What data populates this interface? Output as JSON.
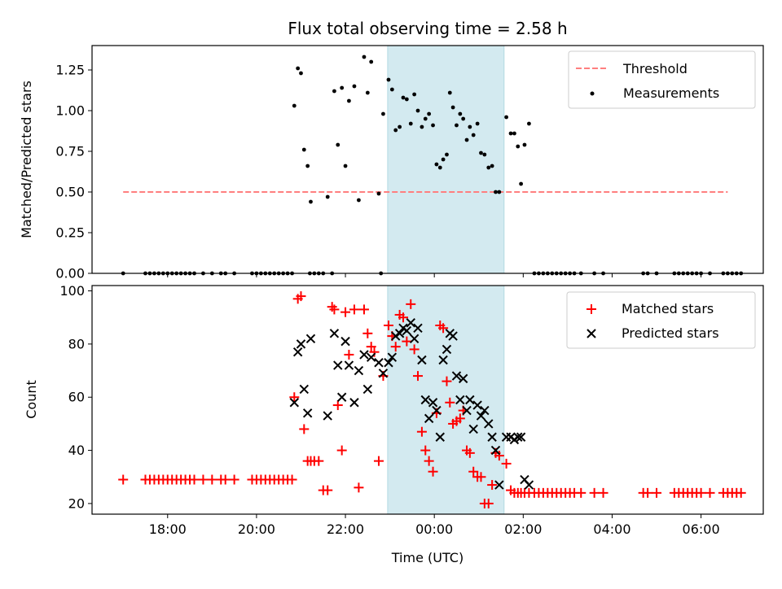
{
  "chart_data": [
    {
      "type": "scatter",
      "title": "Flux total observing time = 2.58 h",
      "xlabel": "",
      "ylabel": "Matched/Predicted stars",
      "xlim": [
        16.3,
        31.4
      ],
      "ylim": [
        0,
        1.4
      ],
      "x_ticks": [
        18,
        20,
        22,
        24,
        26,
        28,
        30
      ],
      "y_ticks": [
        0,
        0.25,
        0.5,
        0.75,
        1.0,
        1.25
      ],
      "y_tick_labels": [
        "0.00",
        "0.25",
        "0.50",
        "0.75",
        "1.00",
        "1.25"
      ],
      "shaded_interval": [
        22.95,
        25.57
      ],
      "shade_color": "#d3eaf0",
      "legend_position": "upper right",
      "legend": [
        "Threshold",
        "Measurements"
      ],
      "threshold": {
        "name": "Threshold",
        "value": 0.5,
        "x_range": [
          17.0,
          30.6
        ],
        "color": "#ff7f7f",
        "style": "dashed"
      },
      "series": [
        {
          "name": "Measurements",
          "color": "#000000",
          "x": [
            20.85,
            20.93,
            21.0,
            21.07,
            21.15,
            21.22,
            21.6,
            21.75,
            21.83,
            21.92,
            22.0,
            22.08,
            22.2,
            22.3,
            22.42,
            22.5,
            22.58,
            22.75,
            22.85,
            22.97,
            23.05,
            23.13,
            23.22,
            23.3,
            23.38,
            23.47,
            23.55,
            23.63,
            23.72,
            23.8,
            23.88,
            23.97,
            24.05,
            24.13,
            24.2,
            24.28,
            24.35,
            24.42,
            24.5,
            24.58,
            24.65,
            24.73,
            24.8,
            24.88,
            24.97,
            25.05,
            25.13,
            25.22,
            25.3,
            25.38,
            25.46,
            25.62,
            25.72,
            25.8,
            25.88,
            25.95,
            26.03,
            26.13
          ],
          "y": [
            1.03,
            1.26,
            1.23,
            0.76,
            0.66,
            0.44,
            0.47,
            1.12,
            0.79,
            1.14,
            0.66,
            1.06,
            1.15,
            0.45,
            1.33,
            1.11,
            1.3,
            0.49,
            0.98,
            1.19,
            1.13,
            0.88,
            0.9,
            1.08,
            1.07,
            0.92,
            1.1,
            1.0,
            0.9,
            0.95,
            0.98,
            0.91,
            0.67,
            0.65,
            0.7,
            0.73,
            1.11,
            1.02,
            0.91,
            0.98,
            0.95,
            0.82,
            0.9,
            0.85,
            0.92,
            0.74,
            0.73,
            0.65,
            0.66,
            0.5,
            0.5,
            0.96,
            0.86,
            0.86,
            0.78,
            0.55,
            0.79,
            0.92
          ]
        },
        {
          "name": "Measurements (zero values)",
          "color": "#000000",
          "x": [
            17.0,
            17.5,
            17.6,
            17.7,
            17.8,
            17.9,
            18.0,
            18.1,
            18.2,
            18.3,
            18.4,
            18.5,
            18.6,
            18.8,
            19.0,
            19.2,
            19.3,
            19.5,
            19.9,
            20.0,
            20.1,
            20.2,
            20.3,
            20.4,
            20.5,
            20.6,
            20.7,
            20.8,
            21.2,
            21.3,
            21.4,
            21.5,
            21.7,
            22.8,
            26.25,
            26.35,
            26.45,
            26.55,
            26.65,
            26.75,
            26.85,
            26.95,
            27.05,
            27.15,
            27.3,
            27.6,
            27.8,
            28.7,
            28.8,
            29.0,
            29.4,
            29.5,
            29.6,
            29.7,
            29.8,
            29.9,
            30.0,
            30.2,
            30.5,
            30.6,
            30.7,
            30.8,
            30.9
          ]
        }
      ]
    },
    {
      "type": "scatter",
      "title": "",
      "xlabel": "Time (UTC)",
      "ylabel": "Count",
      "xlim": [
        16.3,
        31.4
      ],
      "ylim": [
        16,
        102
      ],
      "x_ticks": [
        18,
        20,
        22,
        24,
        26,
        28,
        30
      ],
      "x_tick_labels": [
        "18:00",
        "20:00",
        "22:00",
        "00:00",
        "02:00",
        "04:00",
        "06:00"
      ],
      "y_ticks": [
        20,
        40,
        60,
        80,
        100
      ],
      "y_tick_labels": [
        "20",
        "40",
        "60",
        "80",
        "100"
      ],
      "shaded_interval": [
        22.95,
        25.57
      ],
      "shade_color": "#d3eaf0",
      "legend_position": "upper right",
      "legend": [
        "Matched stars",
        "Predicted stars"
      ],
      "series": [
        {
          "name": "Matched stars",
          "marker": "plus",
          "color": "#ff0000",
          "x": [
            17.0,
            17.5,
            17.6,
            17.7,
            17.8,
            17.9,
            18.0,
            18.1,
            18.2,
            18.3,
            18.4,
            18.5,
            18.6,
            18.8,
            19.0,
            19.2,
            19.3,
            19.5,
            19.9,
            20.0,
            20.1,
            20.2,
            20.3,
            20.4,
            20.5,
            20.6,
            20.7,
            20.8,
            20.85,
            20.93,
            21.0,
            21.07,
            21.15,
            21.22,
            21.3,
            21.4,
            21.5,
            21.6,
            21.7,
            21.75,
            21.83,
            21.92,
            22.0,
            22.08,
            22.2,
            22.3,
            22.42,
            22.5,
            22.58,
            22.65,
            22.75,
            22.85,
            22.97,
            23.05,
            23.13,
            23.22,
            23.3,
            23.38,
            23.47,
            23.55,
            23.63,
            23.72,
            23.8,
            23.88,
            23.97,
            24.05,
            24.13,
            24.2,
            24.28,
            24.35,
            24.42,
            24.5,
            24.58,
            24.65,
            24.73,
            24.8,
            24.88,
            24.97,
            25.05,
            25.13,
            25.22,
            25.3,
            25.38,
            25.46,
            25.62,
            25.72,
            25.8,
            25.88,
            25.95,
            26.03,
            26.13,
            26.25,
            26.35,
            26.45,
            26.55,
            26.65,
            26.75,
            26.85,
            26.95,
            27.05,
            27.15,
            27.3,
            27.6,
            27.8,
            28.7,
            28.8,
            29.0,
            29.4,
            29.5,
            29.6,
            29.7,
            29.8,
            29.9,
            30.0,
            30.2,
            30.5,
            30.6,
            30.7,
            30.8,
            30.9
          ],
          "y": [
            29,
            29,
            29,
            29,
            29,
            29,
            29,
            29,
            29,
            29,
            29,
            29,
            29,
            29,
            29,
            29,
            29,
            29,
            29,
            29,
            29,
            29,
            29,
            29,
            29,
            29,
            29,
            29,
            60,
            97,
            98,
            48,
            36,
            36,
            36,
            36,
            25,
            25,
            94,
            93,
            57,
            40,
            92,
            76,
            93,
            26,
            93,
            84,
            79,
            77,
            36,
            68,
            87,
            83,
            79,
            91,
            90,
            81,
            95,
            78,
            68,
            47,
            40,
            36,
            32,
            54,
            87,
            86,
            66,
            58,
            50,
            51,
            52,
            55,
            40,
            39,
            32,
            30,
            30,
            20,
            20,
            27,
            39,
            38,
            35,
            25,
            24,
            24,
            24,
            24,
            24,
            24,
            24,
            24,
            24,
            24,
            24,
            24,
            24,
            24,
            24,
            24,
            24,
            24,
            24,
            24,
            24,
            24,
            24,
            24,
            24,
            24,
            24,
            24,
            24,
            24,
            24,
            24,
            24,
            24
          ]
        },
        {
          "name": "Predicted stars",
          "marker": "x",
          "color": "#000000",
          "x": [
            20.85,
            20.93,
            21.0,
            21.07,
            21.15,
            21.22,
            21.6,
            21.75,
            21.83,
            21.92,
            22.0,
            22.08,
            22.2,
            22.3,
            22.42,
            22.5,
            22.58,
            22.75,
            22.85,
            22.97,
            23.05,
            23.13,
            23.22,
            23.3,
            23.38,
            23.47,
            23.55,
            23.63,
            23.72,
            23.8,
            23.88,
            23.97,
            24.05,
            24.13,
            24.2,
            24.28,
            24.35,
            24.42,
            24.5,
            24.58,
            24.65,
            24.73,
            24.8,
            24.88,
            24.97,
            25.05,
            25.13,
            25.22,
            25.3,
            25.38,
            25.46,
            25.62,
            25.72,
            25.8,
            25.88,
            25.95,
            26.03,
            26.13
          ],
          "y": [
            58,
            77,
            80,
            63,
            54,
            82,
            53,
            84,
            72,
            60,
            81,
            72,
            58,
            70,
            76,
            63,
            75,
            73,
            69,
            73,
            75,
            83,
            84,
            86,
            85,
            88,
            82,
            86,
            74,
            59,
            52,
            58,
            55,
            45,
            74,
            78,
            84,
            83,
            68,
            59,
            67,
            55,
            59,
            48,
            57,
            53,
            55,
            50,
            45,
            40,
            27,
            45,
            45,
            44,
            45,
            45,
            29,
            27
          ]
        }
      ]
    }
  ]
}
